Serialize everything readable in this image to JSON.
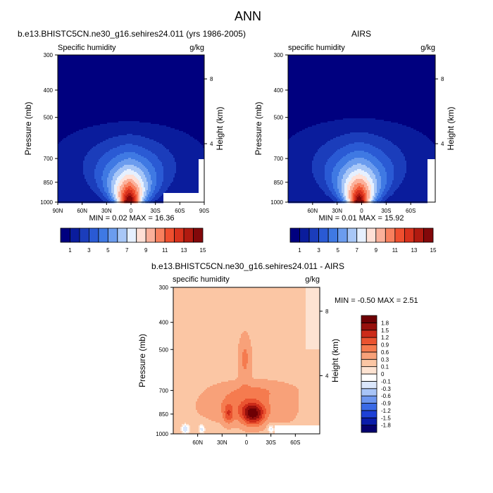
{
  "figure_title": "ANN",
  "colors": {
    "moist_scale": [
      "#00007f",
      "#0a1c9c",
      "#1b3dbb",
      "#2a5ad4",
      "#3f79e3",
      "#6b9cee",
      "#a8c7f7",
      "#e6f0ff",
      "#ffe0d6",
      "#fbb09a",
      "#f8805e",
      "#ef4f2f",
      "#d8311c",
      "#b11a10",
      "#82080a"
    ],
    "diff_scale": [
      "#05006e",
      "#0a1caa",
      "#1d40d6",
      "#3a6ae6",
      "#6d96ef",
      "#a8c4f7",
      "#dbe7fc",
      "#ffffff",
      "#fde3d2",
      "#fbc6a4",
      "#f8a179",
      "#f57b4f",
      "#ea5330",
      "#cc2b19",
      "#97100c",
      "#6e0004"
    ]
  },
  "panels": {
    "model": {
      "title": "b.e13.BHISTC5CN.ne30_g16.sehires24.011 (yrs 1986-2005)",
      "variable": "Specific humidity",
      "units": "g/kg",
      "minmax": "MIN =  0.02  MAX =  16.36"
    },
    "obs": {
      "title": "AIRS",
      "variable": "specific humidity",
      "units": "g/kg",
      "minmax": "MIN =  0.01  MAX =  15.92"
    },
    "diff": {
      "title": "b.e13.BHISTC5CN.ne30_g16.sehires24.011 - AIRS",
      "variable": "specific humidity",
      "units": "g/kg",
      "minmax": "MIN = -0.50  MAX =   2.51"
    }
  },
  "chart_data": [
    {
      "type": "heatmap",
      "plot_type": "filled contour",
      "title": "b.e13.BHISTC5CN.ne30_g16.sehires24.011 (yrs 1986-2005)",
      "xlabel": "",
      "ylabel": "Pressure (mb)",
      "ylabel_right": "Height (km)",
      "x_ticks": [
        "90N",
        "60N",
        "30N",
        "0",
        "30S",
        "60S",
        "90S"
      ],
      "x_tick_lat": [
        90,
        60,
        30,
        0,
        -30,
        -60,
        -90
      ],
      "xlim": [
        90,
        -90
      ],
      "y_ticks": [
        300,
        400,
        500,
        700,
        850,
        1000
      ],
      "ylim": [
        300,
        1000
      ],
      "y_scale": "log",
      "height_ticks": [
        "8",
        "4"
      ],
      "height_tick_p": [
        365,
        620
      ],
      "levels": [
        1,
        2,
        3,
        4,
        5,
        6,
        7,
        8,
        9,
        10,
        11,
        12,
        13,
        14,
        15
      ],
      "colorbar_labels": [
        "1",
        "3",
        "5",
        "7",
        "9",
        "11",
        "13",
        "15"
      ],
      "min": 0.02,
      "max": 16.36,
      "peak": {
        "lat": 2,
        "p": 1000,
        "value": 16.36
      },
      "cap_p": 400,
      "core_half_width": 11,
      "flank_slope_deg_per_100mb": 11,
      "masked": [
        {
          "lat_from": -40,
          "lat_to": -90,
          "p_from": 925,
          "p_to": 1000
        }
      ],
      "masked_column_lat": -83,
      "masked_column_p_from": 700
    },
    {
      "type": "heatmap",
      "plot_type": "filled contour",
      "title": "AIRS",
      "xlabel": "",
      "ylabel": "Pressure (mb)",
      "ylabel_right": "Height (km)",
      "x_ticks": [
        "60N",
        "30N",
        "0",
        "30S",
        "60S"
      ],
      "x_tick_lat": [
        60,
        30,
        0,
        -30,
        -60
      ],
      "xlim": [
        90,
        -90
      ],
      "y_ticks": [
        300,
        400,
        500,
        700,
        850,
        1000
      ],
      "ylim": [
        300,
        1000
      ],
      "y_scale": "log",
      "height_ticks": [
        "8",
        "4"
      ],
      "height_tick_p": [
        365,
        620
      ],
      "levels": [
        1,
        2,
        3,
        4,
        5,
        6,
        7,
        8,
        9,
        10,
        11,
        12,
        13,
        14,
        15
      ],
      "colorbar_labels": [
        "1",
        "3",
        "5",
        "7",
        "9",
        "11",
        "13",
        "15"
      ],
      "min": 0.01,
      "max": 15.92,
      "peak": {
        "lat": 3,
        "p": 1000,
        "value": 15.92
      },
      "cap_p": 380,
      "core_half_width": 11,
      "flank_slope_deg_per_100mb": 11,
      "masked": [
        {
          "lat_from": -80,
          "lat_to": -90,
          "p_from": 700,
          "p_to": 1000
        }
      ]
    },
    {
      "type": "heatmap",
      "plot_type": "filled contour",
      "title": "b.e13.BHISTC5CN.ne30_g16.sehires24.011 - AIRS",
      "xlabel": "",
      "ylabel": "Pressure (mb)",
      "ylabel_right": "Height (km)",
      "x_ticks": [
        "60N",
        "30N",
        "0",
        "30S",
        "60S"
      ],
      "x_tick_lat": [
        60,
        30,
        0,
        -30,
        -60
      ],
      "xlim": [
        90,
        -90
      ],
      "y_ticks": [
        300,
        400,
        500,
        700,
        850,
        1000
      ],
      "ylim": [
        300,
        1000
      ],
      "y_scale": "log",
      "height_ticks": [
        "8",
        "4"
      ],
      "height_tick_p": [
        365,
        620
      ],
      "levels": [
        -1.8,
        -1.5,
        -1.2,
        -0.9,
        -0.6,
        -0.3,
        -0.1,
        0,
        0.1,
        0.3,
        0.6,
        0.9,
        1.2,
        1.5,
        1.8
      ],
      "colorbar_labels": [
        "1.8",
        "1.5",
        "1.2",
        "0.9",
        "0.6",
        "0.3",
        "0.1",
        "0",
        "-0.1",
        "-0.3",
        "-0.6",
        "-0.9",
        "-1.2",
        "-1.5",
        "-1.8"
      ],
      "min": -0.5,
      "max": 2.51,
      "maxima": [
        {
          "lat": -8,
          "p": 850,
          "value": 2.51
        },
        {
          "lat": 22,
          "p": 850,
          "value": 1.6
        }
      ],
      "masked": [
        {
          "lat_from": -35,
          "lat_to": -90,
          "p_from": 930,
          "p_to": 1000
        }
      ]
    }
  ]
}
